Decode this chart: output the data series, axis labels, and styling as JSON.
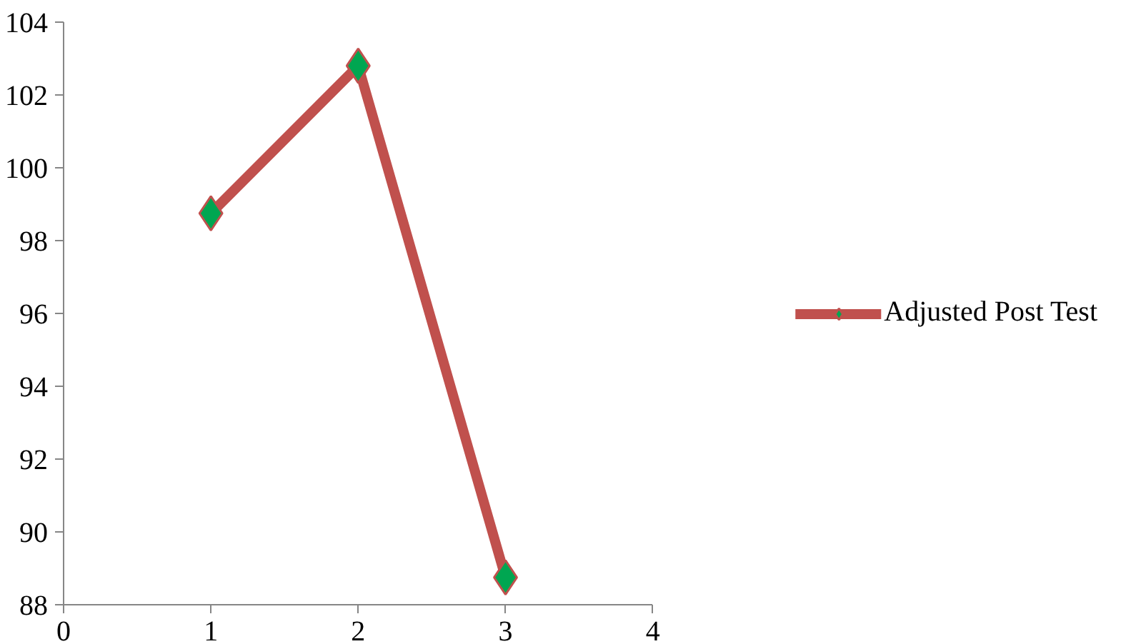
{
  "chart_data": {
    "type": "line",
    "x": [
      1,
      2,
      3
    ],
    "series": [
      {
        "name": "Adjusted Post Test",
        "color": "#c0504d",
        "colors": [
          "#00a651",
          "#00a651",
          "#00a651"
        ],
        "values": [
          98.75,
          102.8,
          88.75
        ]
      }
    ],
    "xlim": [
      0,
      4
    ],
    "xticks": [
      0,
      1,
      2,
      3,
      4
    ],
    "ylim": [
      88,
      104
    ],
    "yticks": [
      88,
      90,
      92,
      94,
      96,
      98,
      100,
      102,
      104
    ],
    "grid": false,
    "legend": "right",
    "marker": "diamond",
    "line_style": "solid"
  }
}
